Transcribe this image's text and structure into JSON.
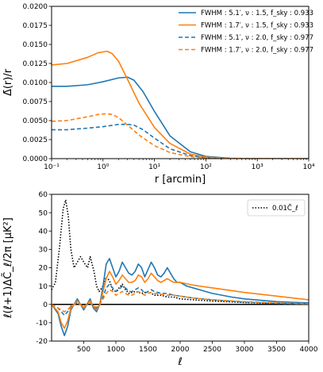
{
  "chart_data": [
    {
      "type": "line",
      "ylabel": "Δ̄(r)/r",
      "xlabel": "r [arcmin]",
      "xscale": "log",
      "xlim": [
        0.1,
        10000
      ],
      "ylim": [
        0,
        0.02
      ],
      "xticks": [
        {
          "value": 0.1,
          "label": "10⁻¹"
        },
        {
          "value": 1,
          "label": "10⁰"
        },
        {
          "value": 10,
          "label": "10¹"
        },
        {
          "value": 100,
          "label": "10²"
        },
        {
          "value": 1000,
          "label": "10³"
        },
        {
          "value": 10000,
          "label": "10⁴"
        }
      ],
      "yticks": [
        {
          "value": 0,
          "label": "0.0000"
        },
        {
          "value": 0.0025,
          "label": "0.0025"
        },
        {
          "value": 0.005,
          "label": "0.0050"
        },
        {
          "value": 0.0075,
          "label": "0.0075"
        },
        {
          "value": 0.01,
          "label": "0.0100"
        },
        {
          "value": 0.0125,
          "label": "0.0125"
        },
        {
          "value": 0.015,
          "label": "0.0150"
        },
        {
          "value": 0.0175,
          "label": "0.0175"
        },
        {
          "value": 0.02,
          "label": "0.0200"
        }
      ],
      "legend_position": "top-right",
      "series": [
        {
          "name": "FWHM : 5.1′, ν : 1.5, f_sky : 0.933",
          "color": "#1f77b4",
          "dash": "solid",
          "x": [
            0.1,
            0.2,
            0.5,
            1,
            2,
            3,
            4,
            6,
            10,
            20,
            50,
            100,
            300,
            1000,
            10000
          ],
          "y": [
            0.0095,
            0.0095,
            0.0097,
            0.0101,
            0.0106,
            0.0107,
            0.0103,
            0.0088,
            0.0062,
            0.003,
            0.0009,
            0.0003,
            5e-05,
            0.0,
            0.0
          ]
        },
        {
          "name": "FWHM : 1.7′, ν : 1.5, f_sky : 0.933",
          "color": "#ff7f0e",
          "dash": "solid",
          "x": [
            0.1,
            0.2,
            0.5,
            0.8,
            1.2,
            1.5,
            2,
            3,
            5,
            10,
            20,
            50,
            100,
            300,
            1000,
            10000
          ],
          "y": [
            0.0123,
            0.0125,
            0.0133,
            0.0139,
            0.0141,
            0.0138,
            0.0128,
            0.0104,
            0.0073,
            0.0041,
            0.002,
            0.0006,
            0.0002,
            3e-05,
            0.0,
            0.0
          ]
        },
        {
          "name": "FWHM : 5.1′, ν : 2.0, f_sky : 0.977",
          "color": "#1f77b4",
          "dash": "dashed",
          "x": [
            0.1,
            0.2,
            0.5,
            1,
            2,
            3,
            4,
            6,
            10,
            20,
            50,
            100,
            300,
            1000,
            10000
          ],
          "y": [
            0.0038,
            0.0038,
            0.004,
            0.0042,
            0.0045,
            0.0045,
            0.0044,
            0.0038,
            0.0027,
            0.0013,
            0.0004,
            0.0001,
            2e-05,
            0.0,
            0.0
          ]
        },
        {
          "name": "FWHM : 1.7′, ν : 2.0, f_sky : 0.977",
          "color": "#ff7f0e",
          "dash": "dashed",
          "x": [
            0.1,
            0.2,
            0.5,
            0.8,
            1.2,
            1.5,
            2,
            3,
            5,
            10,
            20,
            50,
            100,
            300,
            1000,
            10000
          ],
          "y": [
            0.0049,
            0.005,
            0.0055,
            0.0058,
            0.0059,
            0.0058,
            0.0054,
            0.0044,
            0.0031,
            0.0017,
            0.0008,
            0.00025,
            0.0001,
            2e-05,
            0.0,
            0.0
          ]
        }
      ]
    },
    {
      "type": "line",
      "ylabel": "ℓ(ℓ+1)ΔC̃_ℓ/2π [μK²]",
      "xlabel": "ℓ",
      "xlim": [
        0,
        4000
      ],
      "ylim": [
        -20,
        60
      ],
      "xticks": [
        500,
        1000,
        1500,
        2000,
        2500,
        3000,
        3500,
        4000
      ],
      "yticks": [
        -20,
        -10,
        0,
        10,
        20,
        30,
        40,
        50,
        60
      ],
      "zero_line": true,
      "legend_position": "top-right",
      "series": [
        {
          "name": "0.01C̃_ℓ",
          "color": "#000000",
          "dash": "dotted",
          "x": [
            0,
            60,
            120,
            180,
            220,
            260,
            300,
            350,
            400,
            450,
            520,
            560,
            600,
            660,
            700,
            740,
            800,
            850,
            900,
            950,
            1000,
            1050,
            1100,
            1150,
            1200,
            1300,
            1400,
            1500,
            1600,
            1700,
            1800,
            1900,
            2000,
            2200,
            2500,
            3000,
            3500,
            4000
          ],
          "y": [
            8,
            12,
            30,
            52,
            57,
            48,
            30,
            20,
            23,
            26,
            22,
            20,
            26,
            18,
            10,
            7,
            10,
            15,
            13,
            8,
            7,
            9,
            11,
            8,
            6,
            7,
            6,
            7,
            5,
            5,
            4,
            4,
            3,
            2.5,
            1.8,
            1,
            0.5,
            0.2
          ]
        },
        {
          "name": "blue solid",
          "color": "#1f77b4",
          "dash": "solid",
          "x": [
            0,
            100,
            150,
            200,
            250,
            300,
            350,
            400,
            450,
            500,
            550,
            600,
            650,
            700,
            750,
            800,
            850,
            900,
            950,
            1000,
            1050,
            1100,
            1150,
            1200,
            1250,
            1300,
            1350,
            1400,
            1450,
            1500,
            1550,
            1600,
            1650,
            1700,
            1750,
            1800,
            1850,
            1900,
            1950,
            2000,
            2100,
            2200,
            2300,
            2500,
            2800,
            3000,
            3500,
            4000
          ],
          "y": [
            0,
            -5,
            -12,
            -17,
            -12,
            -3,
            0,
            3,
            0,
            -3,
            0,
            3,
            -2,
            -4,
            0,
            10,
            22,
            25,
            20,
            15,
            18,
            23,
            20,
            17,
            16,
            18,
            22,
            20,
            15,
            19,
            23,
            20,
            16,
            15,
            17,
            20,
            17,
            14,
            12,
            12,
            10,
            9,
            8,
            6,
            4,
            3,
            1.5,
            0.8
          ]
        },
        {
          "name": "orange solid",
          "color": "#ff7f0e",
          "dash": "solid",
          "x": [
            0,
            100,
            150,
            200,
            250,
            300,
            350,
            400,
            450,
            500,
            550,
            600,
            650,
            700,
            750,
            800,
            850,
            900,
            950,
            1000,
            1050,
            1100,
            1150,
            1200,
            1250,
            1300,
            1350,
            1400,
            1450,
            1500,
            1550,
            1600,
            1650,
            1700,
            1750,
            1800,
            1850,
            1900,
            1950,
            2000,
            2200,
            2500,
            3000,
            3500,
            4000
          ],
          "y": [
            0,
            -4,
            -10,
            -13,
            -9,
            -2,
            0,
            2,
            0,
            -2,
            0,
            2,
            -1,
            -3,
            0,
            7,
            14,
            18,
            15,
            11,
            13,
            16,
            14,
            12,
            12,
            13,
            16,
            15,
            12,
            14,
            17,
            15,
            13,
            12,
            13,
            14,
            13,
            12,
            12,
            12,
            10.5,
            9,
            6.5,
            4.5,
            2.5
          ]
        },
        {
          "name": "blue dashed",
          "color": "#1f77b4",
          "dash": "dashed",
          "x": [
            0,
            100,
            200,
            250,
            300,
            350,
            400,
            450,
            500,
            550,
            600,
            650,
            700,
            750,
            800,
            850,
            900,
            950,
            1000,
            1050,
            1100,
            1150,
            1200,
            1250,
            1300,
            1350,
            1400,
            1450,
            1500,
            1550,
            1600,
            1700,
            1800,
            1900,
            2000,
            2200,
            2500,
            3000,
            3500,
            4000
          ],
          "y": [
            0,
            -2,
            -6,
            -4,
            -1,
            0,
            1,
            0,
            -1,
            0,
            1,
            -1,
            -2,
            0,
            4,
            9,
            11,
            9,
            7,
            8,
            10,
            9,
            7,
            7,
            8,
            9,
            8,
            6,
            7,
            8,
            7,
            6,
            6,
            5,
            4.5,
            3.5,
            2.5,
            1.2,
            0.6,
            0.2
          ]
        },
        {
          "name": "orange dashed",
          "color": "#ff7f0e",
          "dash": "dashed",
          "x": [
            0,
            100,
            200,
            250,
            300,
            350,
            400,
            450,
            500,
            550,
            600,
            650,
            700,
            750,
            800,
            850,
            900,
            950,
            1000,
            1050,
            1100,
            1150,
            1200,
            1250,
            1300,
            1350,
            1400,
            1450,
            1500,
            1550,
            1600,
            1700,
            1800,
            1900,
            2000,
            2200,
            2500,
            3000,
            3500,
            4000
          ],
          "y": [
            0,
            -2,
            -4,
            -3,
            -1,
            0,
            1,
            0,
            -1,
            0,
            1,
            -1,
            -1.5,
            0,
            3,
            6,
            8,
            7,
            5,
            6,
            7,
            6,
            5,
            5,
            6,
            7,
            6,
            5,
            6,
            6.5,
            6,
            5.5,
            5,
            5,
            4.5,
            3.5,
            2.5,
            1.5,
            0.8,
            0.3
          ]
        }
      ]
    }
  ]
}
